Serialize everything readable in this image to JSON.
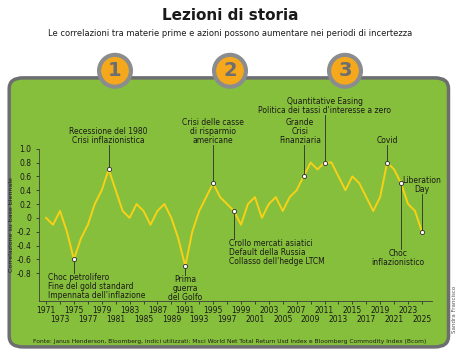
{
  "chart_data": {
    "type": "line",
    "title": "Lezioni di storia",
    "subtitle": "Le correlazioni tra materie prime e azioni possono aumentare nei periodi di incertezza",
    "badges": [
      "1",
      "2",
      "3"
    ],
    "y_label": "Correlazione su base biennale",
    "x": [
      1971,
      1972,
      1973,
      1974,
      1975,
      1976,
      1977,
      1978,
      1979,
      1980,
      1981,
      1982,
      1983,
      1984,
      1985,
      1986,
      1987,
      1988,
      1989,
      1990,
      1991,
      1992,
      1993,
      1994,
      1995,
      1996,
      1997,
      1998,
      1999,
      2000,
      2001,
      2002,
      2003,
      2004,
      2005,
      2006,
      2007,
      2008,
      2009,
      2010,
      2011,
      2012,
      2013,
      2014,
      2015,
      2016,
      2017,
      2018,
      2019,
      2020,
      2021,
      2022,
      2023,
      2024,
      2025
    ],
    "values": [
      0.0,
      -0.1,
      0.1,
      -0.2,
      -0.6,
      -0.3,
      -0.1,
      0.2,
      0.4,
      0.7,
      0.4,
      0.1,
      0.0,
      0.2,
      0.1,
      -0.1,
      0.1,
      0.2,
      0.0,
      -0.3,
      -0.7,
      -0.2,
      0.1,
      0.3,
      0.5,
      0.3,
      0.2,
      0.1,
      -0.1,
      0.2,
      0.3,
      0.0,
      0.2,
      0.3,
      0.1,
      0.3,
      0.4,
      0.6,
      0.8,
      0.7,
      0.8,
      0.8,
      0.6,
      0.4,
      0.6,
      0.5,
      0.3,
      0.1,
      0.3,
      0.8,
      0.7,
      0.5,
      0.2,
      0.1,
      -0.2
    ],
    "color": "#f7d117",
    "xlim": [
      1970,
      2026.5
    ],
    "xticks": [
      1971,
      1973,
      1975,
      1977,
      1979,
      1981,
      1983,
      1985,
      1987,
      1989,
      1991,
      1993,
      1995,
      1997,
      1999,
      2001,
      2003,
      2005,
      2007,
      2009,
      2011,
      2013,
      2015,
      2017,
      2019,
      2021,
      2023,
      2025
    ],
    "ylim": [
      -1.2,
      1.0
    ],
    "yticks": [
      -0.8,
      -0.6,
      -0.4,
      -0.2,
      0,
      0.2,
      0.4,
      0.6,
      0.8,
      1.0
    ],
    "grid": false,
    "annotations": [
      {
        "text": "Choc petrolifero\nFine del gold standard\nImpennata dell'inflazione",
        "x": 1975
      },
      {
        "text": "Recessione del 1980\nCrisi inflazionistica",
        "x": 1980
      },
      {
        "text": "Prima\nguerra\ndel Golfo",
        "x": 1991
      },
      {
        "text": "Crisi delle casse\ndi risparmio\namericane",
        "x": 1995
      },
      {
        "text": "Crollo mercati asiatici\nDefault della Russia\nCollasso dell'hedge LTCM",
        "x": 1998
      },
      {
        "text": "Grande\nCrisi\nFinanziaria",
        "x": 2008
      },
      {
        "text": "Quantitative Easing\nPolitica dei tassi d'interesse a zero",
        "x": 2011
      },
      {
        "text": "Covid",
        "x": 2020
      },
      {
        "text": "Choc\ninflazionistico",
        "x": 2022
      },
      {
        "text": "Liberation\nDay",
        "x": 2025
      }
    ],
    "source": "Fonte: Janus Henderson, Bloomberg, indici utilizzati: Msci World Net Total Return Usd Index e Bloomberg Commodity Index (Bcom)",
    "credit": "Sandra Francisco"
  }
}
